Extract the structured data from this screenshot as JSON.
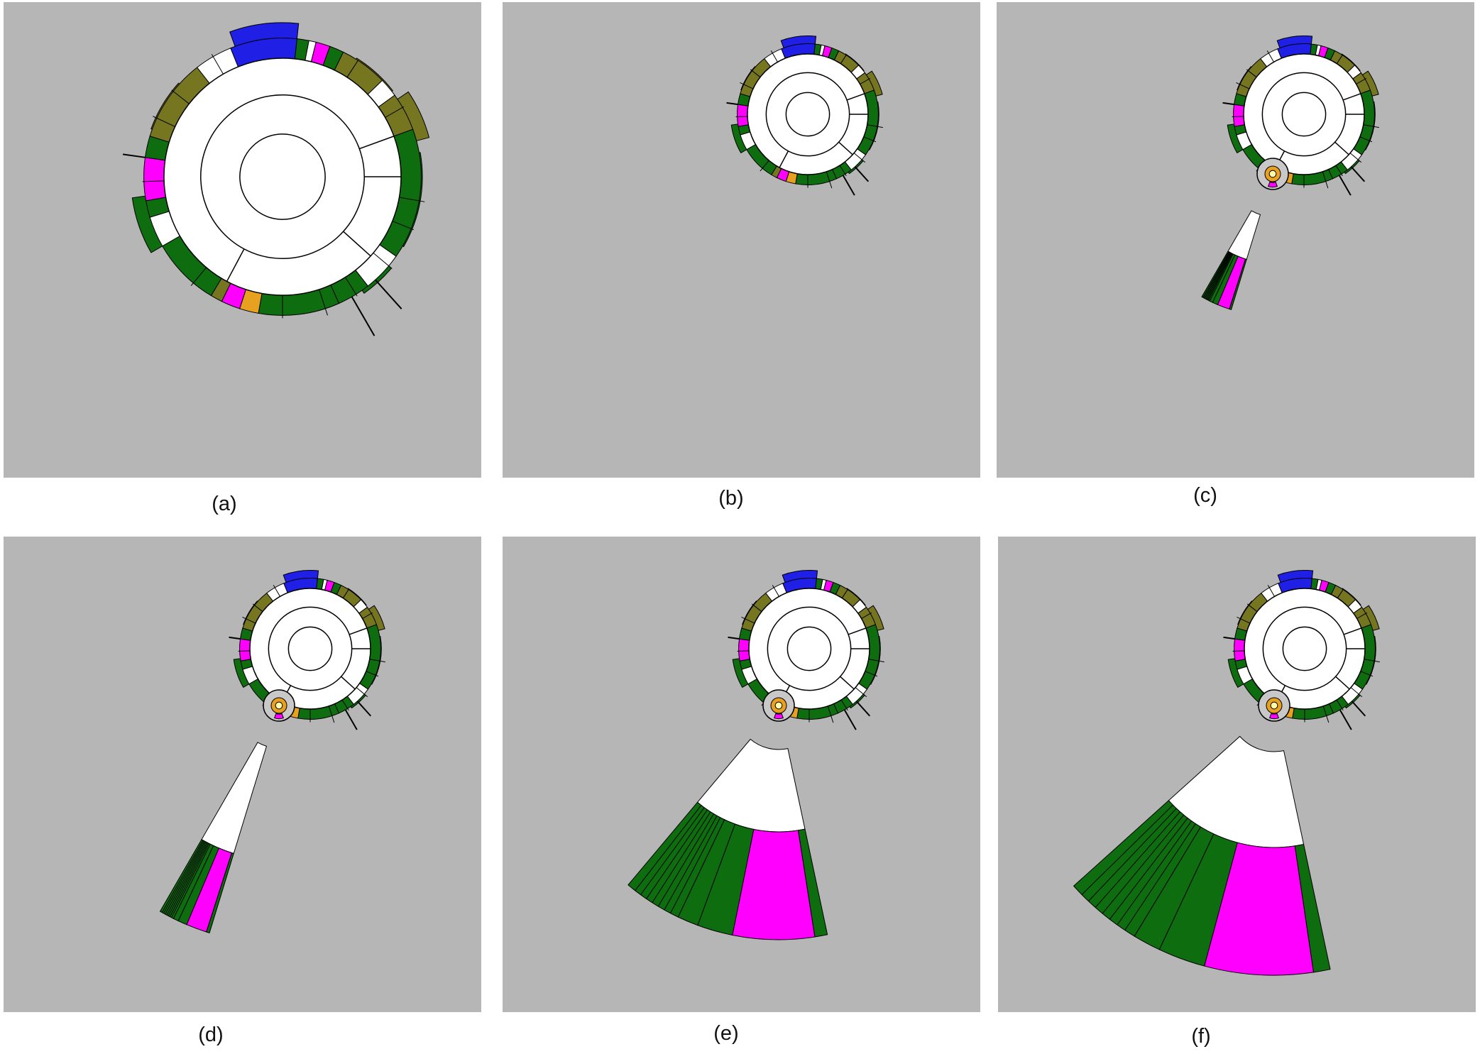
{
  "panels": [
    {
      "id": "a",
      "caption": "(a)"
    },
    {
      "id": "b",
      "caption": "(b)"
    },
    {
      "id": "c",
      "caption": "(c)"
    },
    {
      "id": "d",
      "caption": "(d)"
    },
    {
      "id": "e",
      "caption": "(e)"
    },
    {
      "id": "f",
      "caption": "(f)"
    }
  ],
  "colors": {
    "background": "#b6b6b6",
    "node": "#ffffff",
    "outline": "#000000",
    "green": "#0e6d0e",
    "olive": "#767621",
    "blue": "#1f1fe6",
    "magenta": "#ff00ff",
    "orange": "#e8a020",
    "lime": "#33d833",
    "yellow": "#eeee00"
  }
}
